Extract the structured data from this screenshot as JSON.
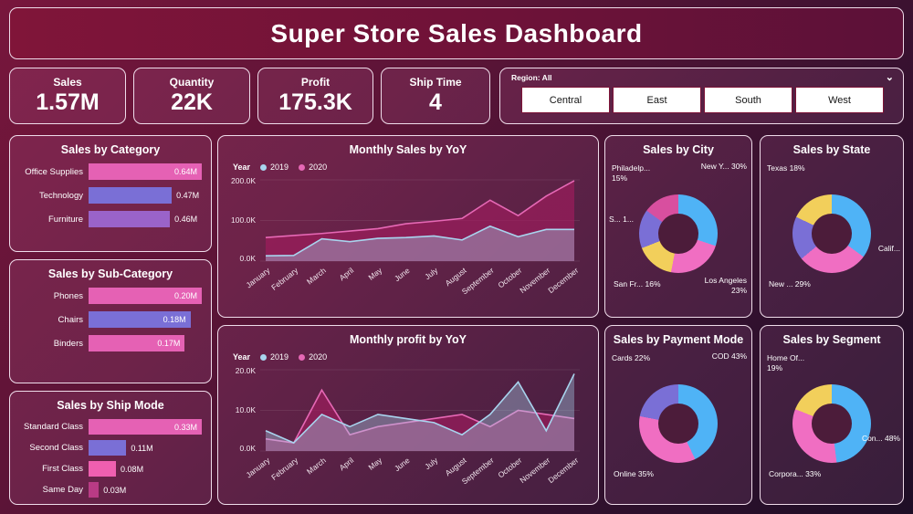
{
  "title": "Super Store Sales Dashboard",
  "kpis": [
    {
      "label": "Sales",
      "value": "1.57M"
    },
    {
      "label": "Quantity",
      "value": "22K"
    },
    {
      "label": "Profit",
      "value": "175.3K"
    },
    {
      "label": "Ship Time",
      "value": "4"
    }
  ],
  "region_filter": {
    "label": "Region: All",
    "chevron": "⌄",
    "options": [
      "Central",
      "East",
      "South",
      "West"
    ]
  },
  "colors": {
    "accent_pink": "#e561b4",
    "accent_purple": "#7a6fd6",
    "accent_blue": "#4fb3f6",
    "accent_yellow": "#f2cf5b",
    "series_2019": "#a8d4ee",
    "series_2020": "#e668b5"
  },
  "chart_data": [
    {
      "type": "bar",
      "title": "Sales by Category",
      "categories": [
        "Office Supplies",
        "Technology",
        "Furniture"
      ],
      "values": [
        0.64,
        0.47,
        0.46
      ],
      "value_labels": [
        "0.64M",
        "0.47M",
        "0.46M"
      ],
      "colors": [
        "#e561b4",
        "#7a6fd6",
        "#9a63c9"
      ],
      "xlim": [
        0,
        0.64
      ]
    },
    {
      "type": "bar",
      "title": "Sales by Sub-Category",
      "categories": [
        "Phones",
        "Chairs",
        "Binders"
      ],
      "values": [
        0.2,
        0.18,
        0.17
      ],
      "value_labels": [
        "0.20M",
        "0.18M",
        "0.17M"
      ],
      "colors": [
        "#e561b4",
        "#7a6fd6",
        "#e561b4"
      ],
      "xlim": [
        0,
        0.2
      ]
    },
    {
      "type": "bar",
      "title": "Sales by Ship Mode",
      "categories": [
        "Standard Class",
        "Second Class",
        "First Class",
        "Same Day"
      ],
      "values": [
        0.33,
        0.11,
        0.08,
        0.03
      ],
      "value_labels": [
        "0.33M",
        "0.11M",
        "0.08M",
        "0.03M"
      ],
      "colors": [
        "#e561b4",
        "#7a6fd6",
        "#ef5fb0",
        "#b93b85"
      ],
      "xlim": [
        0,
        0.33
      ]
    },
    {
      "type": "area",
      "title": "Monthly Sales by YoY",
      "legend_label": "Year",
      "x": [
        "January",
        "February",
        "March",
        "April",
        "May",
        "June",
        "July",
        "August",
        "September",
        "October",
        "November",
        "December"
      ],
      "yticks": [
        "0.0K",
        "100.0K",
        "200.0K"
      ],
      "ylim": [
        0,
        200
      ],
      "series": [
        {
          "name": "2019",
          "color": "#a8d4ee",
          "fill": "rgba(168,212,238,0.38)",
          "values": [
            13,
            14,
            55,
            48,
            56,
            58,
            62,
            52,
            86,
            60,
            78,
            78
          ]
        },
        {
          "name": "2020",
          "color": "#e668b5",
          "fill": "rgba(164,28,96,0.62)",
          "values": [
            58,
            63,
            68,
            74,
            80,
            92,
            98,
            105,
            150,
            112,
            160,
            198
          ]
        }
      ]
    },
    {
      "type": "area",
      "title": "Monthly profit by YoY",
      "legend_label": "Year",
      "x": [
        "January",
        "February",
        "March",
        "April",
        "May",
        "June",
        "July",
        "August",
        "September",
        "October",
        "November",
        "December"
      ],
      "yticks": [
        "0.0K",
        "10.0K",
        "20.0K"
      ],
      "ylim": [
        0,
        20
      ],
      "series": [
        {
          "name": "2019",
          "color": "#a8d4ee",
          "fill": "rgba(168,212,238,0.38)",
          "values": [
            5,
            2,
            9,
            6,
            9,
            8,
            7,
            4,
            9,
            17,
            5,
            19
          ]
        },
        {
          "name": "2020",
          "color": "#e668b5",
          "fill": "rgba(164,28,96,0.62)",
          "values": [
            3,
            2,
            15,
            4,
            6,
            7,
            8,
            9,
            6,
            10,
            9,
            8
          ]
        }
      ]
    },
    {
      "type": "pie",
      "title": "Sales by City",
      "slices": [
        {
          "label": "New Y... 30%",
          "value": 30,
          "color": "#4fb3f6"
        },
        {
          "label": "Los Angeles 23%",
          "value": 23,
          "color": "#f06ec2"
        },
        {
          "label": "San Fr... 16%",
          "value": 16,
          "color": "#f2cf5b"
        },
        {
          "label": "S... 1...",
          "value": 16,
          "color": "#7a6fd6"
        },
        {
          "label": "Philadelp... 15%",
          "value": 15,
          "color": "#d84f9f"
        }
      ]
    },
    {
      "type": "pie",
      "title": "Sales by State",
      "slices": [
        {
          "label": "Calif...",
          "value": 35,
          "color": "#4fb3f6"
        },
        {
          "label": "New ... 29%",
          "value": 29,
          "color": "#f06ec2"
        },
        {
          "label": "",
          "value": 18,
          "color": "#7a6fd6"
        },
        {
          "label": "Texas 18%",
          "value": 18,
          "color": "#f2cf5b"
        }
      ]
    },
    {
      "type": "pie",
      "title": "Sales by Payment Mode",
      "slices": [
        {
          "label": "COD 43%",
          "value": 43,
          "color": "#4fb3f6"
        },
        {
          "label": "Online 35%",
          "value": 35,
          "color": "#f06ec2"
        },
        {
          "label": "Cards 22%",
          "value": 22,
          "color": "#7a6fd6"
        }
      ]
    },
    {
      "type": "pie",
      "title": "Sales by Segment",
      "slices": [
        {
          "label": "Con... 48%",
          "value": 48,
          "color": "#4fb3f6"
        },
        {
          "label": "Corpora... 33%",
          "value": 33,
          "color": "#f06ec2"
        },
        {
          "label": "Home Of... 19%",
          "value": 19,
          "color": "#f2cf5b"
        }
      ]
    }
  ]
}
